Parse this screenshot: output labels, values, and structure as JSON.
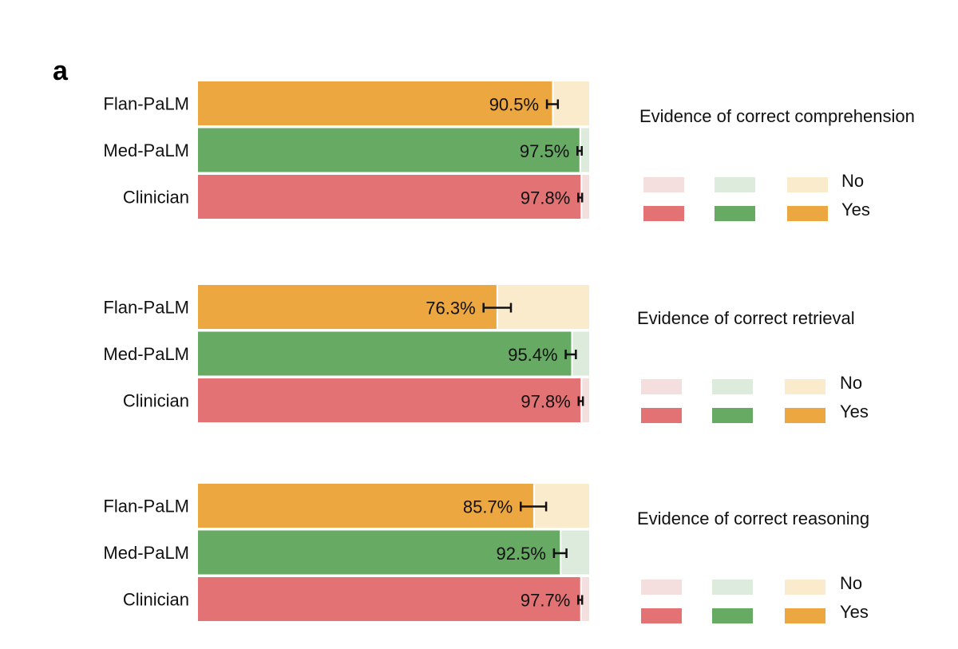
{
  "panel_label": "a",
  "colors": {
    "Flan-PaLM": {
      "yes": "#eca741",
      "no": "#fbebcd"
    },
    "Med-PaLM": {
      "yes": "#66aa63",
      "no": "#ddebdd"
    },
    "Clinician": {
      "yes": "#e27273",
      "no": "#f5dede"
    }
  },
  "legend": {
    "no": "No",
    "yes": "Yes"
  },
  "chart_data": [
    {
      "type": "bar",
      "orientation": "horizontal",
      "stacked": true,
      "title": "Evidence of correct comprehension",
      "categories": [
        "Flan-PaLM",
        "Med-PaLM",
        "Clinician"
      ],
      "series": [
        {
          "name": "Yes",
          "values": [
            90.5,
            97.5,
            97.8
          ],
          "labels": [
            "90.5%",
            "97.5%",
            "97.8%"
          ]
        },
        {
          "name": "No",
          "values": [
            9.5,
            2.5,
            2.2
          ]
        }
      ],
      "error_bars": [
        [
          89.2,
          92.0
        ],
        [
          97.0,
          98.1
        ],
        [
          97.2,
          98.2
        ]
      ],
      "xlim": [
        0,
        100
      ]
    },
    {
      "type": "bar",
      "orientation": "horizontal",
      "stacked": true,
      "title": "Evidence of correct retrieval",
      "categories": [
        "Flan-PaLM",
        "Med-PaLM",
        "Clinician"
      ],
      "series": [
        {
          "name": "Yes",
          "values": [
            76.3,
            95.4,
            97.8
          ],
          "labels": [
            "76.3%",
            "95.4%",
            "97.8%"
          ]
        },
        {
          "name": "No",
          "values": [
            23.7,
            4.6,
            2.2
          ]
        }
      ],
      "error_bars": [
        [
          73.0,
          80.0
        ],
        [
          94.0,
          96.6
        ],
        [
          97.3,
          98.4
        ]
      ],
      "xlim": [
        0,
        100
      ]
    },
    {
      "type": "bar",
      "orientation": "horizontal",
      "stacked": true,
      "title": "Evidence of correct reasoning",
      "categories": [
        "Flan-PaLM",
        "Med-PaLM",
        "Clinician"
      ],
      "series": [
        {
          "name": "Yes",
          "values": [
            85.7,
            92.5,
            97.7
          ],
          "labels": [
            "85.7%",
            "92.5%",
            "97.7%"
          ]
        },
        {
          "name": "No",
          "values": [
            14.3,
            7.5,
            2.3
          ]
        }
      ],
      "error_bars": [
        [
          82.5,
          89.0
        ],
        [
          91.0,
          94.2
        ],
        [
          97.2,
          98.2
        ]
      ],
      "xlim": [
        0,
        100
      ]
    }
  ]
}
